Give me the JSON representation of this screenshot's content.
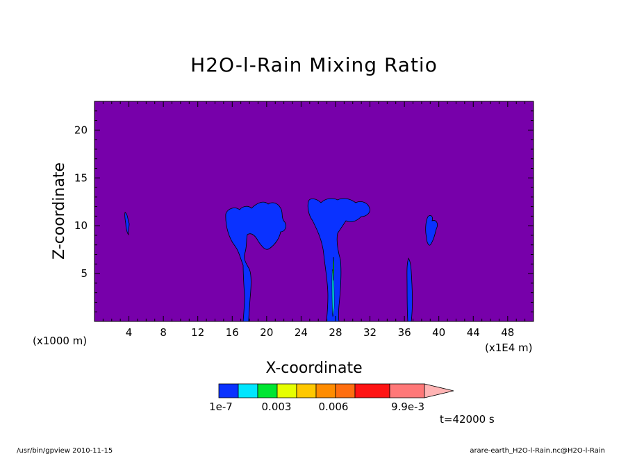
{
  "chart_data": {
    "type": "contour",
    "title": "H2O-l-Rain Mixing Ratio",
    "xlabel": "X-coordinate",
    "ylabel": "Z-coordinate",
    "x_unit_left": "(x1000 m)",
    "x_unit_right": "(x1E4 m)",
    "xlim": [
      0,
      51
    ],
    "ylim": [
      0,
      23
    ],
    "x_ticks": [
      4,
      8,
      12,
      16,
      20,
      24,
      28,
      32,
      36,
      40,
      44,
      48
    ],
    "y_ticks": [
      5,
      10,
      15,
      20
    ],
    "background_color": "#7700aa",
    "colorbar": {
      "colors": [
        "#0a32ff",
        "#00e6ff",
        "#00e632",
        "#e6ff00",
        "#ffc800",
        "#ff8c00",
        "#ff6e10",
        "#ff1414",
        "#ff7878"
      ],
      "extend_color": "#ffb4b4",
      "labels": [
        "1e-7",
        "0.003",
        "0.006",
        "9.9e-3"
      ]
    },
    "regions": [
      {
        "name": "cloud-x4",
        "x": [
          3.6,
          4.0
        ],
        "z": [
          9,
          11.3
        ]
      },
      {
        "name": "cloud-x18",
        "x": [
          15.5,
          22
        ],
        "z": [
          0,
          12
        ]
      },
      {
        "name": "cloud-x28",
        "x": [
          25,
          32
        ],
        "z": [
          0,
          12.8
        ]
      },
      {
        "name": "cloud-x37",
        "x": [
          36.2,
          36.8
        ],
        "z": [
          0,
          6.5
        ]
      },
      {
        "name": "cloud-x39",
        "x": [
          38.5,
          40
        ],
        "z": [
          8,
          11
        ]
      }
    ]
  },
  "time_label": "t=42000 s",
  "footer_left": "/usr/bin/gpview   2010-11-15",
  "footer_right": "arare-earth_H2O-l-Rain.nc@H2O-l-Rain"
}
